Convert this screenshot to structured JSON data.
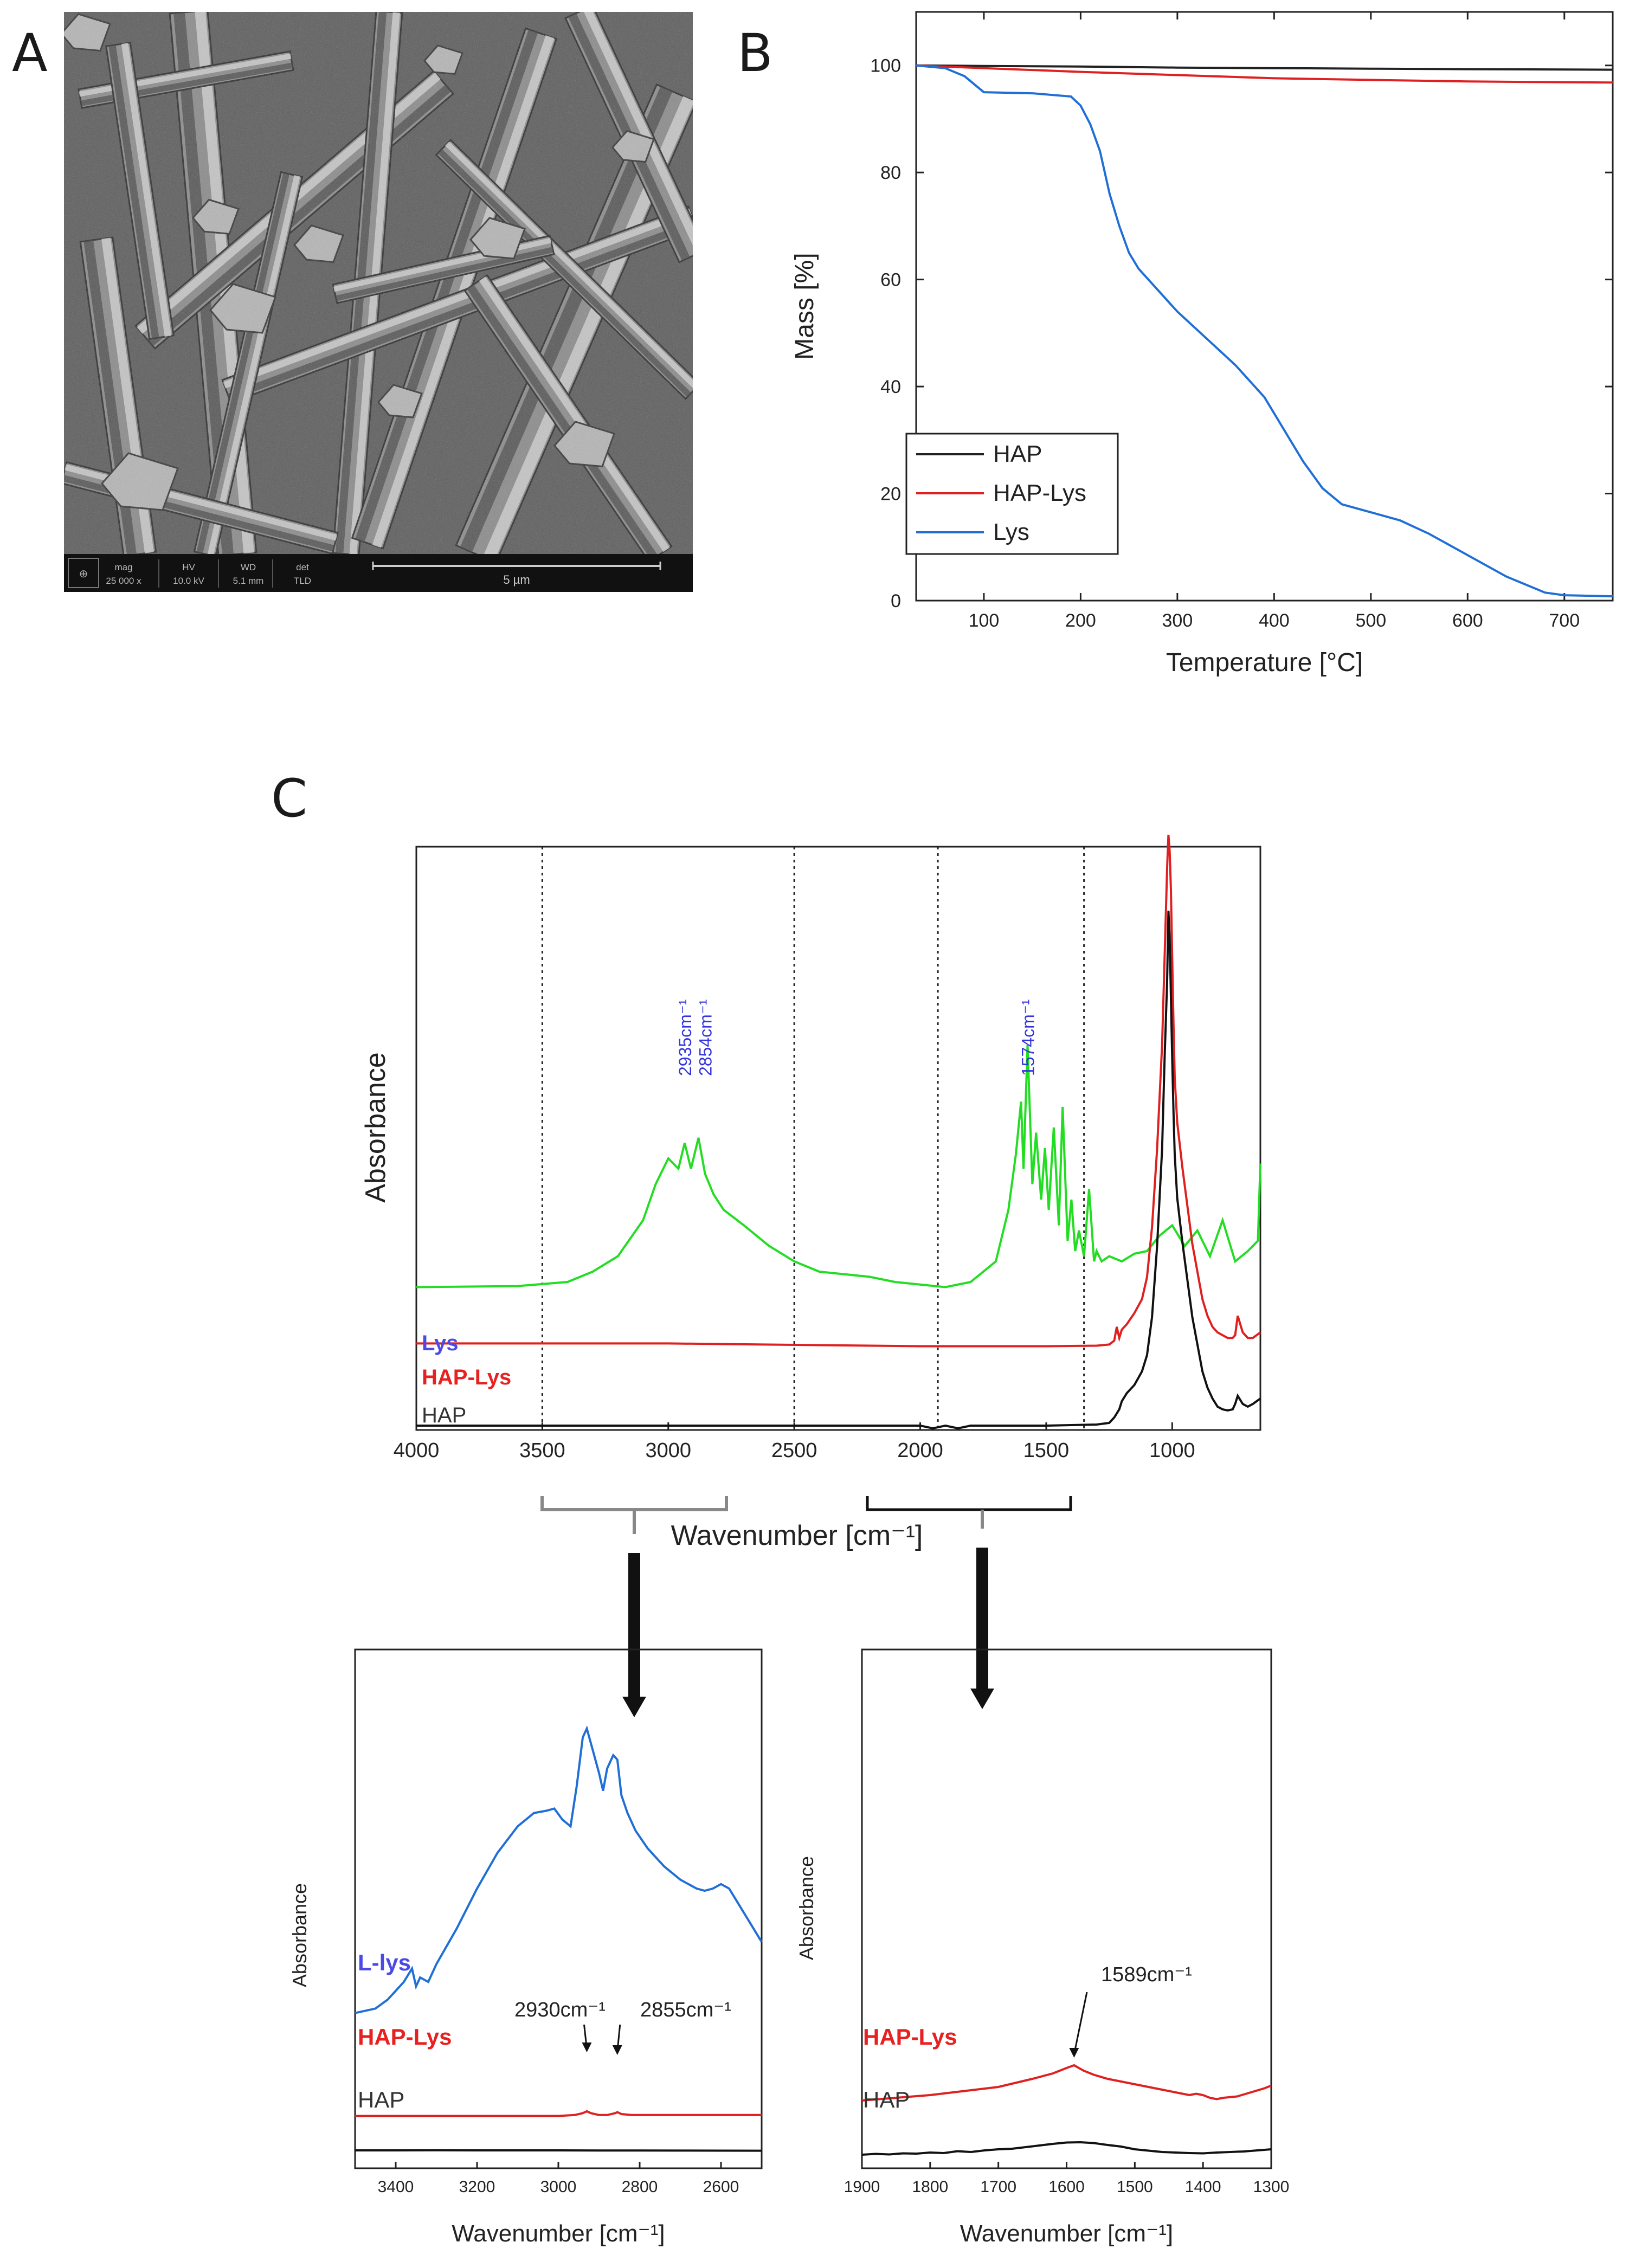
{
  "panels": {
    "a": {
      "letter": "A",
      "scale_bar_label": "5 µm",
      "info_headers": [
        "mag",
        "HV",
        "WD",
        "det"
      ],
      "info_values": [
        "25 000 x",
        "10.0 kV",
        "5.1 mm",
        "TLD"
      ]
    },
    "b": {
      "letter": "B"
    },
    "c": {
      "letter": "C"
    }
  },
  "chart_data": [
    {
      "id": "tga",
      "type": "line",
      "xlabel": "Temperature [°C]",
      "ylabel": "Mass [%]",
      "xlim": [
        30,
        750
      ],
      "ylim": [
        0,
        110
      ],
      "xticks": [
        100,
        200,
        300,
        400,
        500,
        600,
        700
      ],
      "yticks": [
        0,
        20,
        40,
        60,
        80,
        100
      ],
      "legend_position": "bottom-left",
      "series": [
        {
          "name": "HAP",
          "color": "#222222",
          "x": [
            30,
            100,
            200,
            300,
            400,
            500,
            600,
            750
          ],
          "y": [
            100,
            99.9,
            99.8,
            99.6,
            99.5,
            99.4,
            99.3,
            99.2
          ]
        },
        {
          "name": "HAP-Lys",
          "color": "#e02020",
          "x": [
            30,
            100,
            200,
            300,
            400,
            500,
            600,
            750
          ],
          "y": [
            100,
            99.5,
            98.8,
            98.2,
            97.6,
            97.3,
            97.0,
            96.8
          ]
        },
        {
          "name": "Lys",
          "color": "#1f6fd6",
          "x": [
            30,
            60,
            80,
            100,
            150,
            190,
            200,
            210,
            220,
            230,
            240,
            250,
            260,
            280,
            300,
            330,
            360,
            390,
            410,
            430,
            450,
            470,
            500,
            530,
            560,
            600,
            640,
            680,
            700,
            750
          ],
          "y": [
            100,
            99.5,
            98,
            95,
            94.8,
            94.2,
            92.5,
            89,
            84,
            76,
            70,
            65,
            62,
            58,
            54,
            49,
            44,
            38,
            32,
            26,
            21,
            18,
            16.5,
            15,
            12.5,
            8.5,
            4.5,
            1.5,
            1,
            0.8
          ]
        }
      ]
    },
    {
      "id": "ftir_full",
      "type": "line",
      "xlabel": "Wavenumber [cm⁻¹]",
      "ylabel": "Absorbance",
      "xlim": [
        4000,
        650
      ],
      "ylim": [
        0,
        100
      ],
      "xticks": [
        4000,
        3500,
        3000,
        2500,
        2000,
        1500,
        1000
      ],
      "reference_lines": [
        3500,
        2500,
        1930,
        1350
      ],
      "annotations": [
        "2935cm⁻¹",
        "2854cm⁻¹",
        "1574cm⁻¹"
      ],
      "annotation_x": [
        2935,
        2854,
        1574
      ],
      "series": [
        {
          "name": "Lys",
          "label_color": "#4a4ae8",
          "color": "#22dd22",
          "x": [
            4000,
            3600,
            3400,
            3300,
            3200,
            3100,
            3050,
            3000,
            2960,
            2935,
            2910,
            2880,
            2854,
            2820,
            2780,
            2700,
            2600,
            2500,
            2400,
            2300,
            2200,
            2100,
            2000,
            1900,
            1800,
            1700,
            1650,
            1620,
            1600,
            1590,
            1574,
            1555,
            1540,
            1520,
            1505,
            1490,
            1470,
            1450,
            1435,
            1415,
            1400,
            1385,
            1370,
            1350,
            1330,
            1310,
            1300,
            1280,
            1250,
            1200,
            1150,
            1100,
            1050,
            1000,
            950,
            900,
            850,
            800,
            750,
            700,
            660,
            650
          ],
          "y": [
            13,
            13.2,
            14,
            16,
            19,
            26,
            33,
            38,
            36,
            41,
            36,
            42,
            35,
            31,
            28,
            25,
            21,
            18,
            16,
            15.5,
            15,
            14,
            13.5,
            13,
            14,
            18,
            28,
            39,
            49,
            36,
            60,
            33,
            43,
            30,
            40,
            28,
            44,
            25,
            48,
            22,
            30,
            20,
            24,
            19,
            32,
            18,
            20,
            18,
            19,
            18,
            19.5,
            20,
            23,
            25,
            21,
            24,
            19,
            26,
            18,
            20,
            22,
            37
          ]
        },
        {
          "name": "HAP-Lys",
          "label_color": "#e82020",
          "color": "#e02020",
          "x": [
            4000,
            3000,
            2000,
            1500,
            1300,
            1250,
            1230,
            1220,
            1210,
            1200,
            1180,
            1150,
            1120,
            1100,
            1080,
            1060,
            1040,
            1030,
            1020,
            1015,
            1010,
            1005,
            1000,
            995,
            990,
            980,
            960,
            940,
            920,
            900,
            880,
            860,
            840,
            820,
            800,
            780,
            760,
            750,
            740,
            720,
            700,
            680,
            650
          ],
          "y": [
            8,
            8,
            7.5,
            7.5,
            7.6,
            7.8,
            8.5,
            11,
            9,
            10.5,
            11.5,
            13.5,
            16,
            20,
            29,
            43,
            62,
            78,
            94,
            100,
            97,
            90,
            78,
            66,
            56,
            48,
            40,
            33,
            26,
            21,
            16,
            13,
            11,
            10,
            9.5,
            9,
            9,
            9.5,
            13,
            10,
            9,
            9,
            10
          ]
        },
        {
          "name": "HAP",
          "label_color": "#333333",
          "color": "#111111",
          "x": [
            4000,
            3000,
            2000,
            1950,
            1900,
            1850,
            1800,
            1500,
            1300,
            1250,
            1230,
            1210,
            1200,
            1180,
            1150,
            1120,
            1100,
            1080,
            1060,
            1040,
            1030,
            1020,
            1015,
            1010,
            1005,
            1000,
            995,
            990,
            980,
            960,
            940,
            920,
            900,
            880,
            860,
            840,
            820,
            800,
            780,
            760,
            750,
            740,
            720,
            700,
            680,
            650
          ],
          "y": [
            0,
            0,
            0,
            -0.5,
            0,
            -0.5,
            0,
            0,
            0.2,
            0.5,
            1.5,
            3,
            4.5,
            6,
            7.5,
            10,
            13,
            20,
            33,
            51,
            68,
            82,
            95,
            90,
            79,
            68,
            58,
            50,
            42,
            34,
            27,
            20,
            15,
            10,
            7,
            5,
            3.5,
            3,
            2.8,
            3,
            4,
            5.5,
            4,
            3.5,
            4,
            5
          ]
        }
      ]
    },
    {
      "id": "ftir_zoom_high",
      "type": "line",
      "xlabel": "Wavenumber [cm⁻¹]",
      "ylabel": "Absorbance",
      "xlim": [
        3500,
        2500
      ],
      "ylim": [
        0,
        100
      ],
      "xticks": [
        3400,
        3200,
        3000,
        2800,
        2600
      ],
      "annotations": [
        "2930cm⁻¹",
        "2855cm⁻¹"
      ],
      "annotation_x": [
        2930,
        2855
      ],
      "series": [
        {
          "name": "L-lys",
          "label_color": "#4a4ae8",
          "color": "#1f6fd6",
          "x": [
            3500,
            3450,
            3420,
            3400,
            3380,
            3360,
            3350,
            3340,
            3320,
            3300,
            3250,
            3200,
            3150,
            3100,
            3060,
            3030,
            3010,
            2990,
            2970,
            2955,
            2940,
            2930,
            2915,
            2900,
            2890,
            2880,
            2865,
            2855,
            2845,
            2830,
            2810,
            2780,
            2740,
            2700,
            2660,
            2640,
            2620,
            2600,
            2580,
            2560,
            2540,
            2520,
            2500
          ],
          "y": [
            27,
            28,
            30,
            32,
            34,
            37,
            33,
            35,
            34,
            38,
            46,
            55,
            63,
            69,
            72,
            72.5,
            73,
            70.5,
            69,
            78,
            89,
            91,
            86,
            81,
            77,
            82,
            85,
            84,
            76,
            72,
            68,
            64,
            60,
            57,
            55,
            54.5,
            55,
            56,
            55,
            52,
            49,
            46,
            43
          ]
        },
        {
          "name": "HAP-Lys",
          "label_color": "#e82020",
          "color": "#e02020",
          "x": [
            3500,
            3200,
            3000,
            2960,
            2940,
            2930,
            2920,
            2900,
            2880,
            2860,
            2855,
            2845,
            2820,
            2700,
            2500
          ],
          "y": [
            19,
            19,
            19,
            19.5,
            20.5,
            21.5,
            20.5,
            19.5,
            19.5,
            20.5,
            21,
            20,
            19.5,
            19.5,
            19.5
          ]
        },
        {
          "name": "HAP",
          "label_color": "#333333",
          "color": "#111111",
          "x": [
            3500,
            3400,
            3300,
            3200,
            3100,
            3000,
            2900,
            2800,
            2700,
            2600,
            2500
          ],
          "y": [
            8,
            8,
            8.2,
            8,
            8,
            8,
            7.8,
            7.8,
            7.6,
            7.5,
            7.4
          ]
        }
      ]
    },
    {
      "id": "ftir_zoom_low",
      "type": "line",
      "xlabel": "Wavenumber [cm⁻¹]",
      "ylabel": "Absorbance",
      "xlim": [
        1900,
        1300
      ],
      "ylim": [
        0,
        100
      ],
      "xticks": [
        1900,
        1800,
        1700,
        1600,
        1500,
        1400,
        1300
      ],
      "annotations": [
        "1589cm⁻¹"
      ],
      "annotation_x": [
        1589
      ],
      "series": [
        {
          "name": "HAP-Lys",
          "label_color": "#e82020",
          "color": "#e02020",
          "x": [
            1900,
            1850,
            1800,
            1750,
            1700,
            1650,
            1620,
            1600,
            1589,
            1575,
            1560,
            1540,
            1520,
            1500,
            1480,
            1460,
            1440,
            1420,
            1410,
            1400,
            1390,
            1380,
            1370,
            1350,
            1330,
            1310,
            1300
          ],
          "y": [
            20,
            21,
            22,
            23.5,
            25,
            28,
            30,
            32,
            33,
            31,
            29.5,
            28,
            27,
            26,
            25,
            24,
            23,
            22,
            22.5,
            22,
            21,
            20.5,
            21,
            21.5,
            23,
            24.5,
            25.5
          ]
        },
        {
          "name": "HAP",
          "label_color": "#333333",
          "color": "#111111",
          "x": [
            1900,
            1880,
            1860,
            1840,
            1820,
            1800,
            1780,
            1760,
            1740,
            1720,
            1700,
            1680,
            1660,
            1640,
            1620,
            1600,
            1580,
            1560,
            1540,
            1520,
            1500,
            1480,
            1460,
            1440,
            1420,
            1400,
            1380,
            1360,
            1340,
            1320,
            1300
          ],
          "y": [
            8,
            8.3,
            8.1,
            8.5,
            8.4,
            8.8,
            8.6,
            9.3,
            9,
            9.6,
            10,
            10.2,
            10.8,
            11.4,
            12,
            12.5,
            12.6,
            12.3,
            11.6,
            11,
            10,
            9.5,
            9,
            8.8,
            8.6,
            8.5,
            8.8,
            9,
            9.2,
            9.6,
            10
          ]
        }
      ]
    }
  ]
}
